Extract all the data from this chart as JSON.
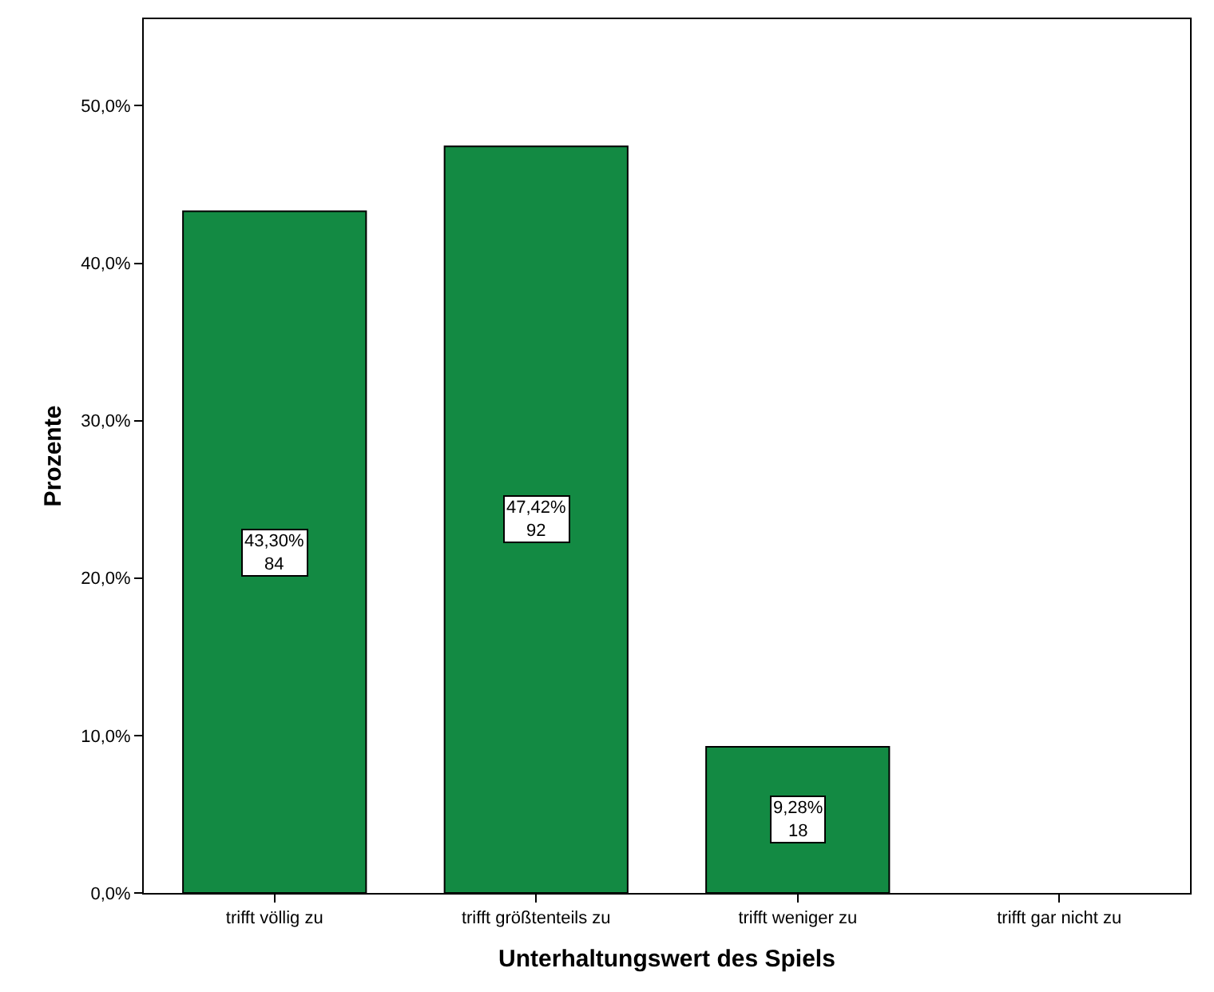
{
  "chart_data": {
    "type": "bar",
    "xlabel": "Unterhaltungswert des Spiels",
    "ylabel": "Prozente",
    "categories": [
      "trifft völlig zu",
      "trifft größtenteils zu",
      "trifft weniger zu",
      "trifft gar nicht zu"
    ],
    "values": [
      43.3,
      47.42,
      9.28,
      null
    ],
    "value_labels": [
      "43,30%\n84",
      "47,42%\n92",
      "9,28%\n18",
      null
    ],
    "color": "#138a43",
    "ylim": [
      0,
      55.5
    ],
    "yticks": [
      {
        "value": 0,
        "label": "0,0%"
      },
      {
        "value": 10,
        "label": "10,0%"
      },
      {
        "value": 20,
        "label": "20,0%"
      },
      {
        "value": 30,
        "label": "30,0%"
      },
      {
        "value": 40,
        "label": "40,0%"
      },
      {
        "value": 50,
        "label": "50,0%"
      }
    ]
  }
}
